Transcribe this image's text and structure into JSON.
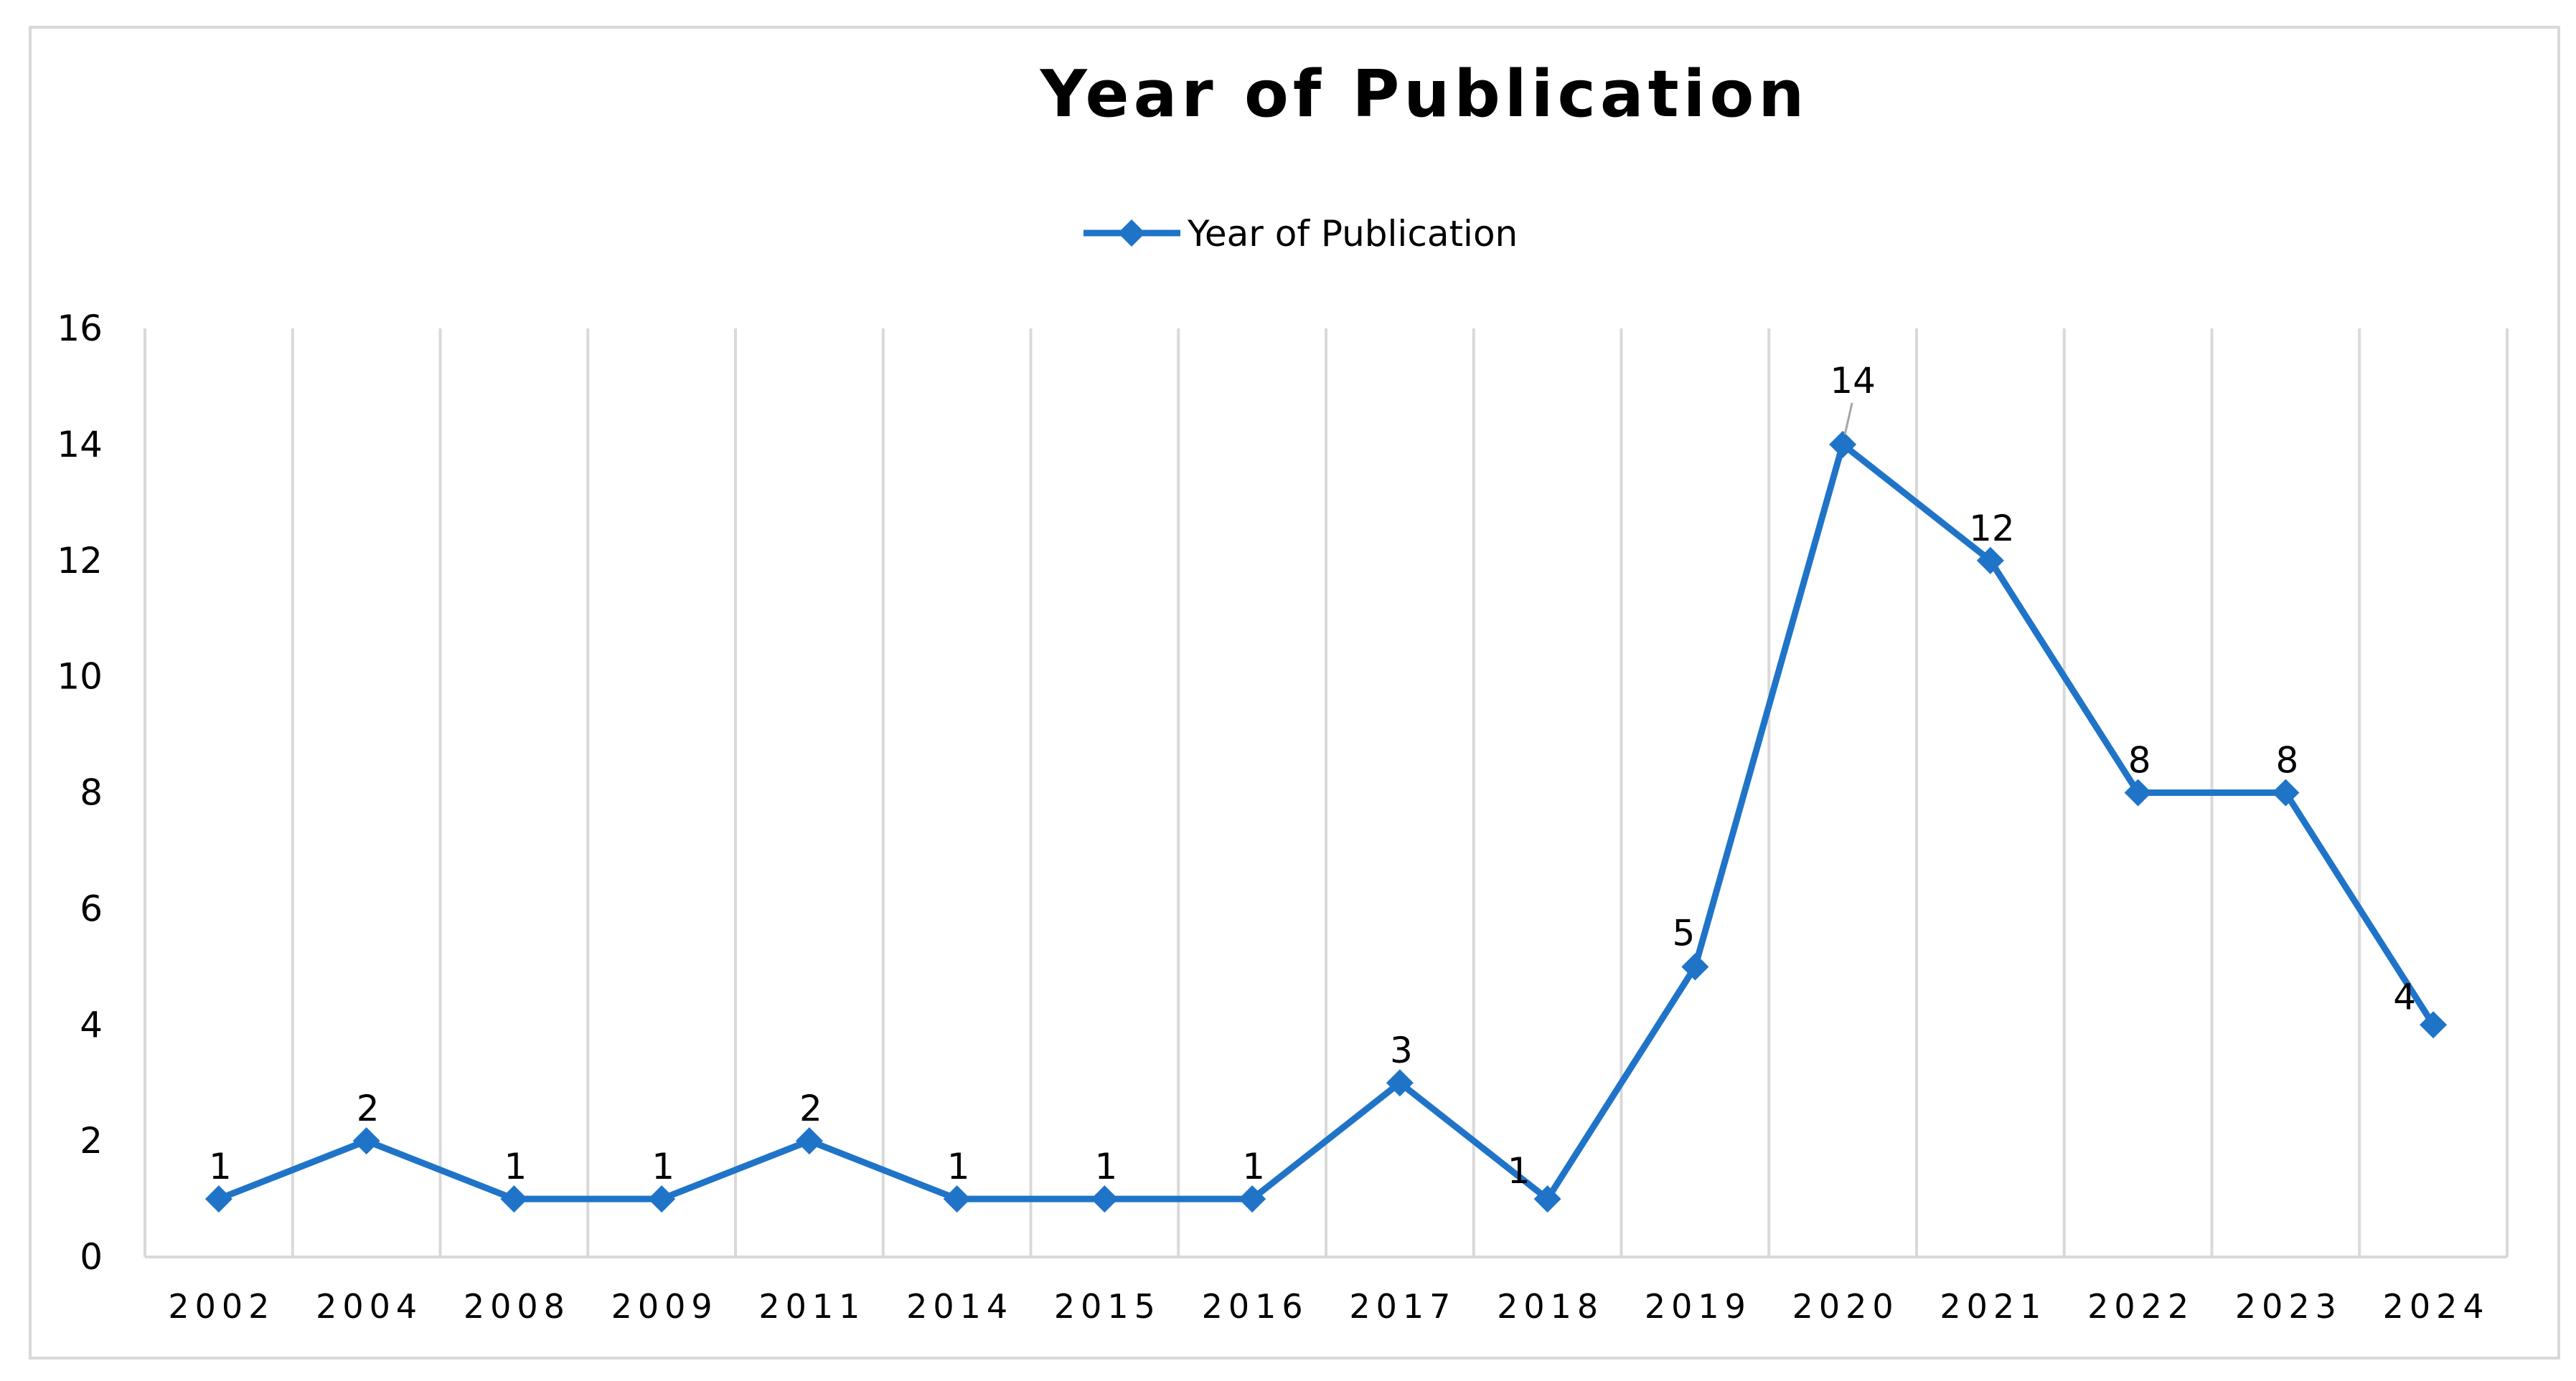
{
  "chart_data": {
    "type": "line",
    "title": "Year of Publication",
    "categories": [
      "2002",
      "2004",
      "2008",
      "2009",
      "2011",
      "2014",
      "2015",
      "2016",
      "2017",
      "2018",
      "2019",
      "2020",
      "2021",
      "2022",
      "2023",
      "2024"
    ],
    "series": [
      {
        "name": "Year of Publication",
        "values": [
          1,
          2,
          1,
          1,
          2,
          1,
          1,
          1,
          3,
          1,
          5,
          14,
          12,
          8,
          8,
          4
        ],
        "color": "#1f74c8",
        "marker": "diamond"
      }
    ],
    "yticks": [
      "0",
      "2",
      "4",
      "6",
      "8",
      "10",
      "12",
      "14",
      "16"
    ],
    "ylim": [
      0,
      16
    ],
    "grid": "vertical",
    "legend_position": "top-center",
    "data_labels": true
  }
}
